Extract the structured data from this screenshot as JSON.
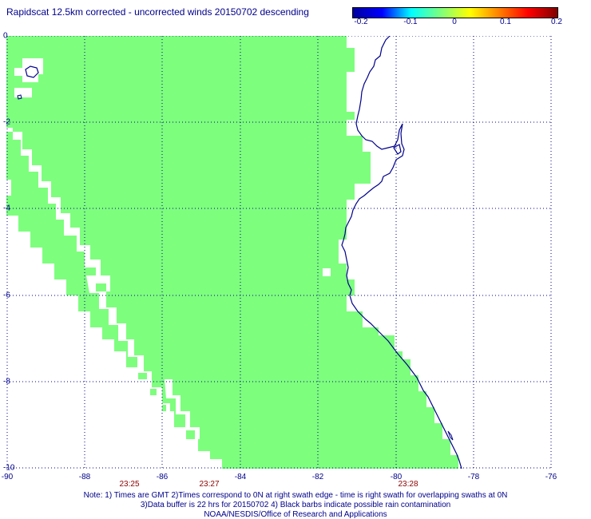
{
  "title": "Rapidscat 12.5km corrected - uncorrected winds 20150702 descending",
  "colorbar": {
    "labels": [
      "-0.2",
      "-0.1",
      "0",
      "0.1",
      "0.2"
    ],
    "colors": [
      "#0000a0",
      "#0000ff",
      "#00ffff",
      "#7dff7d",
      "#ffff00",
      "#ff8000",
      "#ff0000",
      "#800000"
    ]
  },
  "map": {
    "lon_range": [
      -90,
      -76
    ],
    "lat_range": [
      -10,
      0
    ],
    "swath_color": "#7dff7d",
    "coast_color": "#00008b",
    "lat_labels": [
      "0",
      "-2",
      "-4",
      "-6",
      "-8",
      "-10"
    ],
    "lon_labels": [
      "-90",
      "-88",
      "-86",
      "-84",
      "-82",
      "-80",
      "-78",
      "-76"
    ]
  },
  "times": [
    "23:25",
    "23:27",
    "23:28"
  ],
  "notes": [
    "Note: 1) Times are GMT 2)Times correspond to 0N at right swath edge - time is right swath for overlapping swaths at 0N",
    "3)Data buffer is 22 hrs for 20150702 4) Black barbs indicate possible rain contamination",
    "NOAA/NESDIS/Office of Research and Applications"
  ]
}
